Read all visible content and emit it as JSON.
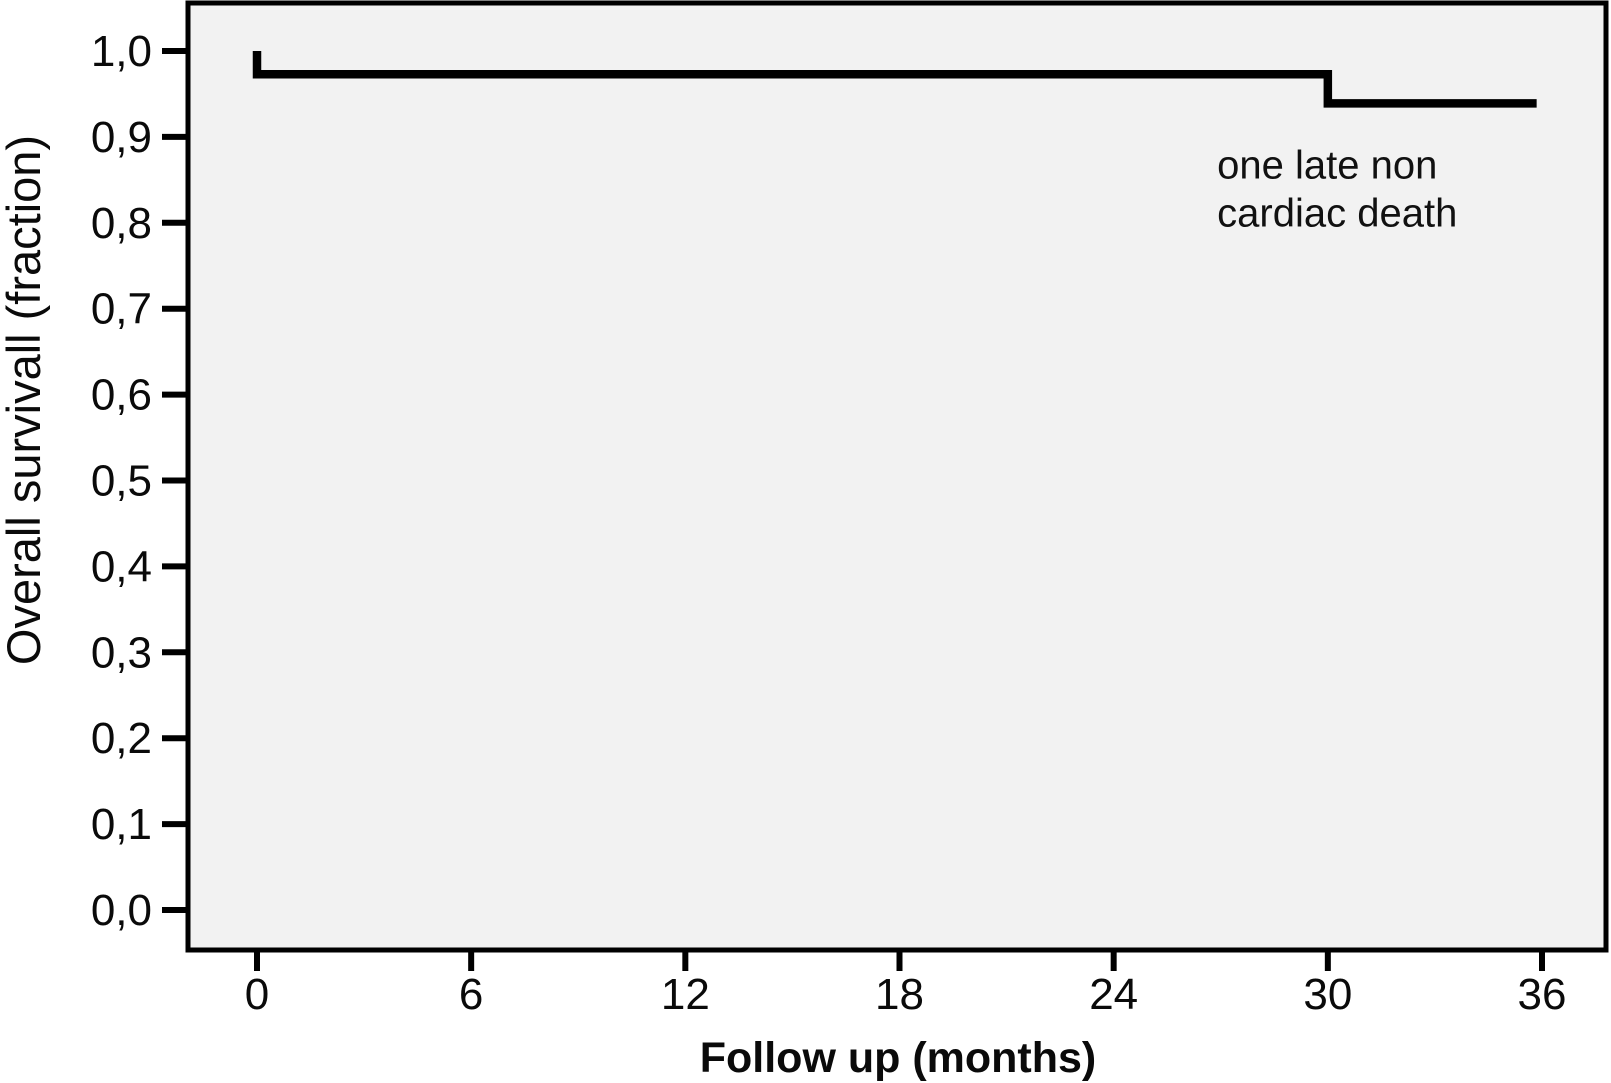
{
  "figure": {
    "background_color": "#ffffff",
    "plot_background_color": "#f2f2f2",
    "axis_color": "#000000",
    "curve_color": "#000000",
    "text_color": "#0a0a0a"
  },
  "chart_data": {
    "type": "line",
    "subtype": "kaplan-meier-step-curve",
    "title": "",
    "xlabel": "Follow up (months)",
    "ylabel": "Overall survivall (fraction)",
    "xlim": [
      0,
      36
    ],
    "ylim": [
      0.0,
      1.0
    ],
    "grid": false,
    "legend": "none",
    "decimal_separator": ",",
    "x_ticks": [
      0,
      6,
      12,
      18,
      24,
      30,
      36
    ],
    "y_ticks": [
      "1,0",
      "0,9",
      "0,8",
      "0,7",
      "0,6",
      "0,5",
      "0,4",
      "0,3",
      "0,2",
      "0,1",
      "0,0"
    ],
    "y_tick_values": [
      1.0,
      0.9,
      0.8,
      0.7,
      0.6,
      0.5,
      0.4,
      0.3,
      0.2,
      0.1,
      0.0
    ],
    "series": [
      {
        "name": "Overall survival",
        "points": [
          [
            0,
            1.0
          ],
          [
            0,
            0.973
          ],
          [
            30,
            0.973
          ],
          [
            30,
            0.939
          ],
          [
            35.85,
            0.939
          ]
        ]
      }
    ],
    "annotation": {
      "lines": [
        "one late non",
        "cardiac death"
      ],
      "x_month": 26.9,
      "y_fraction": 0.89
    }
  }
}
